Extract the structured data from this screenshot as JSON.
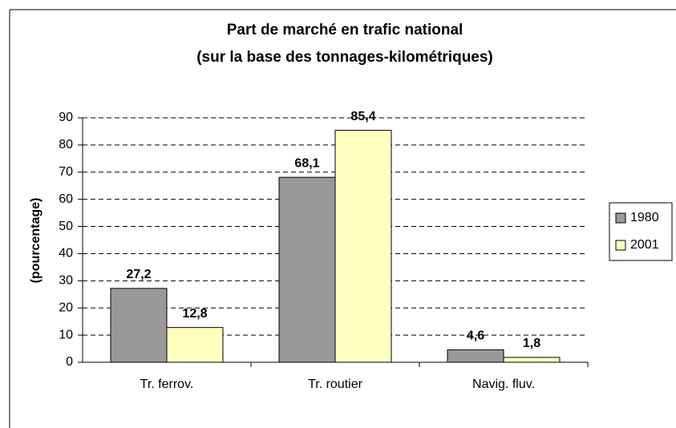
{
  "chart_data": {
    "type": "bar",
    "title": "Part de marché en trafic national",
    "subtitle": "(sur la base des tonnages-kilométriques)",
    "y_label": "(pourcentage)",
    "categories": [
      "Tr. ferrov.",
      "Tr. routier",
      "Navig. fluv."
    ],
    "series": [
      {
        "name": "1980",
        "color": "#999999",
        "values": [
          27.2,
          68.1,
          4.6
        ],
        "value_labels": [
          "27,2",
          "68,1",
          "4,6"
        ]
      },
      {
        "name": "2001",
        "color": "#ffffc0",
        "values": [
          12.8,
          85.4,
          1.8
        ],
        "value_labels": [
          "12,8",
          "85,4",
          "1,8"
        ]
      }
    ],
    "ylim": [
      0,
      90
    ],
    "yticks": [
      0,
      10,
      20,
      30,
      40,
      50,
      60,
      70,
      80,
      90
    ],
    "grid": true,
    "legend": "right"
  }
}
